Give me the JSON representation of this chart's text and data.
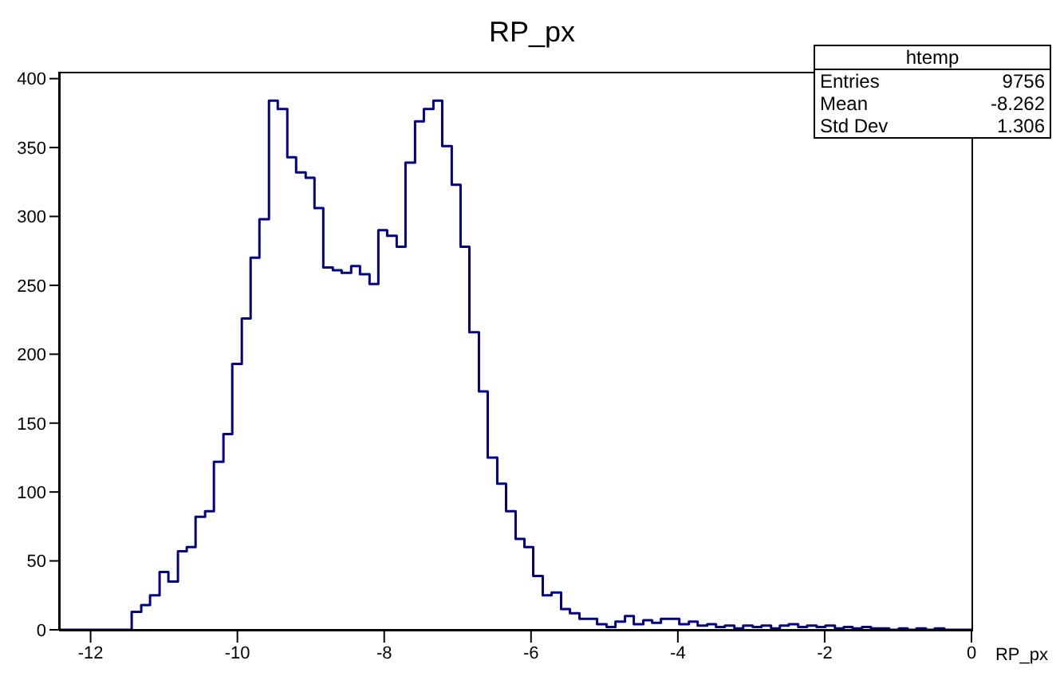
{
  "chart_data": {
    "type": "histogram",
    "title": "RP_px",
    "xlabel": "RP_px",
    "color": "#000080",
    "bins": [
      -12.43,
      -12.31,
      -12.18,
      -12.06,
      -11.93,
      -11.81,
      -11.68,
      -11.56,
      -11.44,
      -11.31,
      -11.19,
      -11.06,
      -10.94,
      -10.81,
      -10.69,
      -10.57,
      -10.44,
      -10.32,
      -10.19,
      -10.07,
      -9.94,
      -9.82,
      -9.7,
      -9.57,
      -9.45,
      -9.32,
      -9.2,
      -9.07,
      -8.95,
      -8.83,
      -8.7,
      -8.58,
      -8.45,
      -8.33,
      -8.2,
      -8.08,
      -7.96,
      -7.83,
      -7.71,
      -7.58,
      -7.46,
      -7.33,
      -7.21,
      -7.08,
      -6.96,
      -6.84,
      -6.71,
      -6.59,
      -6.46,
      -6.34,
      -6.21,
      -6.09,
      -5.97,
      -5.84,
      -5.72,
      -5.59,
      -5.47,
      -5.34,
      -5.22,
      -5.1,
      -4.97,
      -4.85,
      -4.72,
      -4.6,
      -4.47,
      -4.35,
      -4.23,
      -4.1,
      -3.98,
      -3.85,
      -3.73,
      -3.6,
      -3.48,
      -3.36,
      -3.23,
      -3.11,
      -2.98,
      -2.86,
      -2.73,
      -2.61,
      -2.49,
      -2.36,
      -2.24,
      -2.11,
      -1.99,
      -1.86,
      -1.74,
      -1.62,
      -1.49,
      -1.37,
      -1.24,
      -1.12,
      -0.99,
      -0.87,
      -0.75,
      -0.62,
      -0.5,
      -0.37,
      -0.25,
      -0.12,
      0
    ],
    "values": [
      0,
      0,
      0,
      0,
      0,
      0,
      0,
      0,
      13,
      18,
      25,
      42,
      35,
      57,
      60,
      82,
      86,
      122,
      142,
      193,
      226,
      270,
      298,
      384,
      378,
      343,
      332,
      328,
      306,
      263,
      261,
      259,
      264,
      258,
      251,
      290,
      286,
      278,
      339,
      369,
      378,
      384,
      351,
      323,
      278,
      216,
      173,
      125,
      106,
      86,
      66,
      60,
      39,
      25,
      27,
      15,
      12,
      8,
      8,
      4,
      2,
      6,
      10,
      4,
      7,
      5,
      8,
      8,
      4,
      6,
      3,
      4,
      2,
      3,
      1,
      3,
      2,
      3,
      1,
      3,
      4,
      2,
      3,
      2,
      3,
      1,
      2,
      1,
      2,
      1,
      1,
      0,
      1,
      0,
      1,
      0,
      1,
      0,
      0,
      0
    ],
    "xlim": [
      -12.43,
      0
    ],
    "xticks": [
      -12,
      -10,
      -8,
      -6,
      -4,
      -2,
      0
    ],
    "ylim": [
      0,
      405
    ],
    "yticks": [
      0,
      50,
      100,
      150,
      200,
      250,
      300,
      350,
      400
    ],
    "grid": false,
    "annotations": [
      "htemp",
      "Entries 9756",
      "Mean -8.262",
      "Std Dev 1.306"
    ]
  }
}
